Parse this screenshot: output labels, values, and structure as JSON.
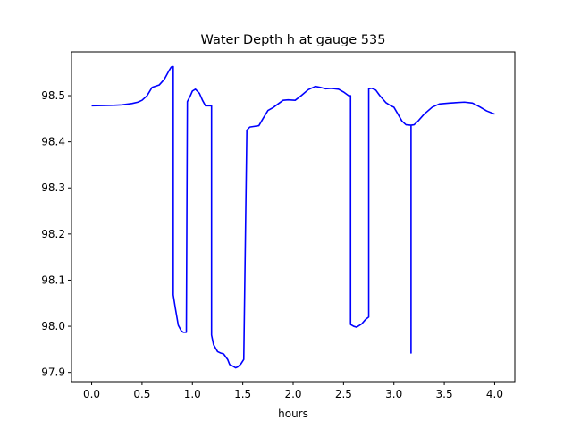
{
  "chart_data": {
    "type": "line",
    "title": "Water Depth h at gauge 535",
    "xlabel": "hours",
    "ylabel": "",
    "xlim": [
      -0.2,
      4.2
    ],
    "ylim": [
      97.88,
      98.595
    ],
    "xticks": [
      0.0,
      0.5,
      1.0,
      1.5,
      2.0,
      2.5,
      3.0,
      3.5,
      4.0
    ],
    "xtick_labels": [
      "0.0",
      "0.5",
      "1.0",
      "1.5",
      "2.0",
      "2.5",
      "3.0",
      "3.5",
      "4.0"
    ],
    "yticks": [
      97.9,
      98.0,
      98.1,
      98.2,
      98.3,
      98.4,
      98.5
    ],
    "ytick_labels": [
      "97.9",
      "98.0",
      "98.1",
      "98.2",
      "98.3",
      "98.4",
      "98.5"
    ],
    "grid": false,
    "series": [
      {
        "color": "#0000ff",
        "x": [
          0.0,
          0.2,
          0.3,
          0.4,
          0.46,
          0.5,
          0.55,
          0.6,
          0.67,
          0.72,
          0.77,
          0.79,
          0.81,
          0.81,
          0.83,
          0.86,
          0.89,
          0.91,
          0.94,
          0.95,
          0.95,
          0.98,
          1.0,
          1.03,
          1.07,
          1.1,
          1.13,
          1.16,
          1.19,
          1.19,
          1.21,
          1.25,
          1.28,
          1.31,
          1.35,
          1.37,
          1.39,
          1.43,
          1.45,
          1.48,
          1.51,
          1.54,
          1.54,
          1.57,
          1.6,
          1.66,
          1.7,
          1.75,
          1.8,
          1.85,
          1.9,
          1.95,
          2.02,
          2.08,
          2.15,
          2.22,
          2.27,
          2.32,
          2.38,
          2.45,
          2.5,
          2.55,
          2.57,
          2.57,
          2.6,
          2.63,
          2.68,
          2.72,
          2.75,
          2.75,
          2.78,
          2.82,
          2.86,
          2.92,
          2.97,
          3.0,
          3.04,
          3.08,
          3.12,
          3.17,
          3.17,
          3.17,
          3.2,
          3.24,
          3.3,
          3.38,
          3.45,
          3.55,
          3.7,
          3.78,
          3.85,
          3.92,
          4.0
        ],
        "y": [
          98.478,
          98.479,
          98.48,
          98.483,
          98.486,
          98.49,
          98.5,
          98.518,
          98.523,
          98.535,
          98.555,
          98.562,
          98.563,
          98.068,
          98.04,
          98.002,
          97.99,
          97.987,
          97.987,
          98.483,
          98.487,
          98.5,
          98.51,
          98.514,
          98.505,
          98.49,
          98.478,
          98.478,
          98.478,
          97.981,
          97.96,
          97.945,
          97.942,
          97.94,
          97.928,
          97.917,
          97.915,
          97.91,
          97.912,
          97.918,
          97.928,
          98.42,
          98.425,
          98.432,
          98.433,
          98.435,
          98.45,
          98.468,
          98.474,
          98.482,
          98.49,
          98.491,
          98.49,
          98.5,
          98.513,
          98.52,
          98.518,
          98.515,
          98.516,
          98.514,
          98.508,
          98.5,
          98.5,
          98.004,
          98.0,
          97.998,
          98.005,
          98.015,
          98.02,
          98.515,
          98.516,
          98.512,
          98.5,
          98.485,
          98.478,
          98.475,
          98.46,
          98.445,
          98.437,
          98.436,
          97.942,
          98.436,
          98.437,
          98.445,
          98.46,
          98.475,
          98.482,
          98.484,
          98.486,
          98.484,
          98.476,
          98.467,
          98.46
        ]
      }
    ]
  }
}
